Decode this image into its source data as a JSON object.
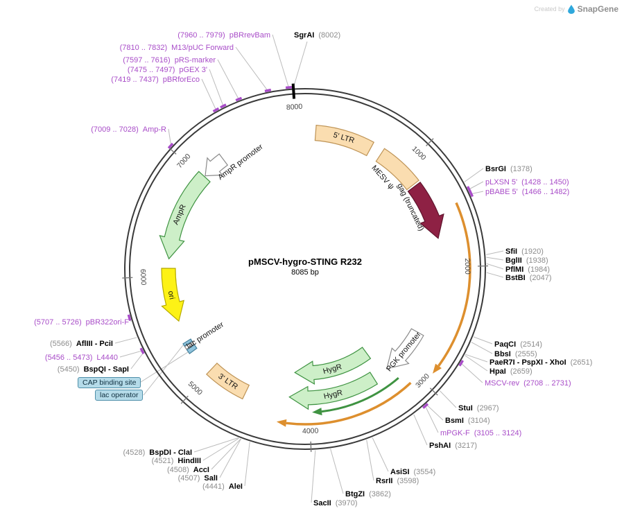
{
  "watermark": {
    "created_by": "Created by",
    "brand": "SnapGene",
    "logo_color": "#2FA8DC"
  },
  "map": {
    "title": "pMSCV-hygro-STING R232",
    "subtitle": "8085 bp",
    "length_bp": 8085,
    "ticks": [
      {
        "bp": 1000,
        "label": "1000"
      },
      {
        "bp": 2000,
        "label": "2000"
      },
      {
        "bp": 3000,
        "label": "3000"
      },
      {
        "bp": 4000,
        "label": "4000"
      },
      {
        "bp": 5000,
        "label": "5000"
      },
      {
        "bp": 6000,
        "label": "6000"
      },
      {
        "bp": 7000,
        "label": "7000"
      },
      {
        "bp": 8000,
        "label": "8000"
      }
    ],
    "features": [
      {
        "id": "ltr5",
        "label": "5' LTR",
        "start": 100,
        "end": 640,
        "shape": "box",
        "fill": "#FADDB0",
        "stroke": "#BE9355"
      },
      {
        "id": "mesv",
        "label": "MESV ψ",
        "start": 750,
        "end": 1170,
        "shape": "box",
        "fill": "#FADDB0",
        "stroke": "#BE9355"
      },
      {
        "id": "gag",
        "label": "gag (truncated)",
        "start": 1190,
        "end": 1730,
        "shape": "arrow",
        "dir": 1,
        "fill": "#8E2144",
        "stroke": "#5E142C"
      },
      {
        "id": "sting",
        "label": "",
        "start": 1490,
        "end": 2905,
        "shape": "line",
        "dir": 1,
        "stroke": "#DD8F2E"
      },
      {
        "id": "pgk",
        "label": "PGK promoter",
        "start": 2680,
        "end": 3160,
        "shape": "arrow",
        "dir": 1,
        "fill": "#FFFFFF",
        "stroke": "#8A8A8A"
      },
      {
        "id": "cassette",
        "label": "",
        "start": 3080,
        "end": 4280,
        "shape": "line",
        "dir": 1,
        "stroke": "#DD8F2E"
      },
      {
        "id": "hygr-line",
        "label": "",
        "start": 3130,
        "end": 3980,
        "shape": "line",
        "dir": 1,
        "stroke": "#3F9342"
      },
      {
        "id": "hygr-a",
        "label": "HygR",
        "start": 3230,
        "end": 4170,
        "shape": "arrow",
        "dir": 1,
        "fill": "#CDEFC8",
        "stroke": "#3F9342"
      },
      {
        "id": "hygr-b",
        "label": "HygR",
        "start": 3320,
        "end": 4200,
        "shape": "arrow",
        "dir": 1,
        "fill": "#CDEFC8",
        "stroke": "#3F9342"
      },
      {
        "id": "ltr3",
        "label": "3' LTR",
        "start": 4620,
        "end": 5010,
        "shape": "box",
        "fill": "#FADDB0",
        "stroke": "#BE9355"
      },
      {
        "id": "cap",
        "label": "CAP binding site",
        "start": 5250,
        "end": 5292,
        "shape": "box",
        "fill": "#8FC3DC",
        "stroke": "#44809C"
      },
      {
        "id": "lacp",
        "label": "lac promoter",
        "start": 5298,
        "end": 5326,
        "shape": "box",
        "fill": "#FFFFFF",
        "stroke": "#8A8A8A"
      },
      {
        "id": "laco",
        "label": "lac operator",
        "start": 5332,
        "end": 5356,
        "shape": "box",
        "fill": "#8FC3DC",
        "stroke": "#44809C"
      },
      {
        "id": "ori",
        "label": "ori",
        "start": 5560,
        "end": 6070,
        "shape": "arrow",
        "dir": -1,
        "fill": "#FDF216",
        "stroke": "#B5A900"
      },
      {
        "id": "ampr",
        "label": "AmpR",
        "start": 6160,
        "end": 7020,
        "shape": "arrow",
        "dir": -1,
        "fill": "#CDEFC8",
        "stroke": "#3F9342"
      },
      {
        "id": "ampr-prom",
        "label": "AmpR promoter",
        "start": 7030,
        "end": 7260,
        "shape": "arrow",
        "dir": -1,
        "fill": "#FFFFFF",
        "stroke": "#8A8A8A"
      }
    ],
    "sites": [
      {
        "id": "SgrAI",
        "kind": "enzyme",
        "name": "SgrAI",
        "pos": "(8002)",
        "bp": 8002
      },
      {
        "id": "pBRrevBam",
        "kind": "primer",
        "name": "pBRrevBam",
        "pos": "(7960 .. 7979)",
        "bp": 7970
      },
      {
        "id": "M13-pUC-Forward",
        "kind": "primer",
        "name": "M13/pUC Forward",
        "pos": "(7810 .. 7832)",
        "bp": 7821
      },
      {
        "id": "pRS-marker",
        "kind": "primer",
        "name": "pRS-marker",
        "pos": "(7597 .. 7616)",
        "bp": 7606
      },
      {
        "id": "pGEX-3",
        "kind": "primer",
        "name": "pGEX 3'",
        "pos": "(7475 .. 7497)",
        "bp": 7486
      },
      {
        "id": "pBRforEco",
        "kind": "primer",
        "name": "pBRforEco",
        "pos": "(7419 .. 7437)",
        "bp": 7428
      },
      {
        "id": "Amp-R",
        "kind": "primer",
        "name": "Amp-R",
        "pos": "(7009 .. 7028)",
        "bp": 7018
      },
      {
        "id": "BsrGI",
        "kind": "enzyme",
        "name": "BsrGI",
        "pos": "(1378)",
        "bp": 1378
      },
      {
        "id": "pLXSN-5",
        "kind": "primer",
        "name": "pLXSN 5'",
        "pos": "(1428 .. 1450)",
        "bp": 1439
      },
      {
        "id": "pBABE-5",
        "kind": "primer",
        "name": "pBABE 5'",
        "pos": "(1466 .. 1482)",
        "bp": 1474
      },
      {
        "id": "SfiI",
        "kind": "enzyme",
        "name": "SfiI",
        "pos": "(1920)",
        "bp": 1920
      },
      {
        "id": "BglII",
        "kind": "enzyme",
        "name": "BglII",
        "pos": "(1938)",
        "bp": 1938
      },
      {
        "id": "PflMI",
        "kind": "enzyme",
        "name": "PflMI",
        "pos": "(1984)",
        "bp": 1984
      },
      {
        "id": "BstBI",
        "kind": "enzyme",
        "name": "BstBI",
        "pos": "(2047)",
        "bp": 2047
      },
      {
        "id": "PaqCI",
        "kind": "enzyme",
        "name": "PaqCI",
        "pos": "(2514)",
        "bp": 2514
      },
      {
        "id": "BbsI",
        "kind": "enzyme",
        "name": "BbsI",
        "pos": "(2555)",
        "bp": 2555
      },
      {
        "id": "PaeR7I-PspXI-XhoI",
        "kind": "enzyme",
        "name": "PaeR7I - PspXI - XhoI",
        "pos": "(2651)",
        "bp": 2651
      },
      {
        "id": "HpaI",
        "kind": "enzyme",
        "name": "HpaI",
        "pos": "(2659)",
        "bp": 2659
      },
      {
        "id": "MSCV-rev",
        "kind": "primer",
        "name": "MSCV-rev",
        "pos": "(2708 .. 2731)",
        "bp": 2720
      },
      {
        "id": "StuI",
        "kind": "enzyme",
        "name": "StuI",
        "pos": "(2967)",
        "bp": 2967
      },
      {
        "id": "BsmI",
        "kind": "enzyme",
        "name": "BsmI",
        "pos": "(3104)",
        "bp": 3104
      },
      {
        "id": "mPGK-F",
        "kind": "primer",
        "name": "mPGK-F",
        "pos": "(3105 .. 3124)",
        "bp": 3115
      },
      {
        "id": "PshAI",
        "kind": "enzyme",
        "name": "PshAI",
        "pos": "(3217)",
        "bp": 3217
      },
      {
        "id": "AsiSI",
        "kind": "enzyme",
        "name": "AsiSI",
        "pos": "(3554)",
        "bp": 3554
      },
      {
        "id": "RsrII",
        "kind": "enzyme",
        "name": "RsrII",
        "pos": "(3598)",
        "bp": 3598
      },
      {
        "id": "BtgZI",
        "kind": "enzyme",
        "name": "BtgZI",
        "pos": "(3862)",
        "bp": 3862
      },
      {
        "id": "SacII",
        "kind": "enzyme",
        "name": "SacII",
        "pos": "(3970)",
        "bp": 3970
      },
      {
        "id": "AleI",
        "kind": "enzyme",
        "name": "AleI",
        "pos": "(4441)",
        "bp": 4441
      },
      {
        "id": "SalI",
        "kind": "enzyme",
        "name": "SalI",
        "pos": "(4507)",
        "bp": 4507
      },
      {
        "id": "AccI",
        "kind": "enzyme",
        "name": "AccI",
        "pos": "(4508)",
        "bp": 4508
      },
      {
        "id": "HindIII",
        "kind": "enzyme",
        "name": "HindIII",
        "pos": "(4521)",
        "bp": 4521
      },
      {
        "id": "BspDI-ClaI",
        "kind": "enzyme",
        "name": "BspDI - ClaI",
        "pos": "(4528)",
        "bp": 4528
      },
      {
        "id": "BspQI-SapI",
        "kind": "enzyme",
        "name": "BspQI - SapI",
        "pos": "(5450)",
        "bp": 5450
      },
      {
        "id": "L4440",
        "kind": "primer",
        "name": "L4440",
        "pos": "(5456 .. 5473)",
        "bp": 5464
      },
      {
        "id": "AflIII-PciI",
        "kind": "enzyme",
        "name": "AflIII - PciI",
        "pos": "(5566)",
        "bp": 5566
      },
      {
        "id": "pBR322ori-F",
        "kind": "primer",
        "name": "pBR322ori-F",
        "pos": "(5707 .. 5726)",
        "bp": 5716
      }
    ],
    "colors": {
      "backbone": "#3A3A3A",
      "primer_label": "#A84CC8",
      "position_gray": "#8C8C8C",
      "leader": "#BBBBBB",
      "tick": "#787878",
      "orange_arc": "#DD8F2E",
      "cds_green": "#CDEFC8",
      "ltr_tan": "#FADDB0",
      "gag_maroon": "#8E2144",
      "ori_yellow": "#FDF216",
      "callout_bg": "#B5DBE9"
    }
  }
}
